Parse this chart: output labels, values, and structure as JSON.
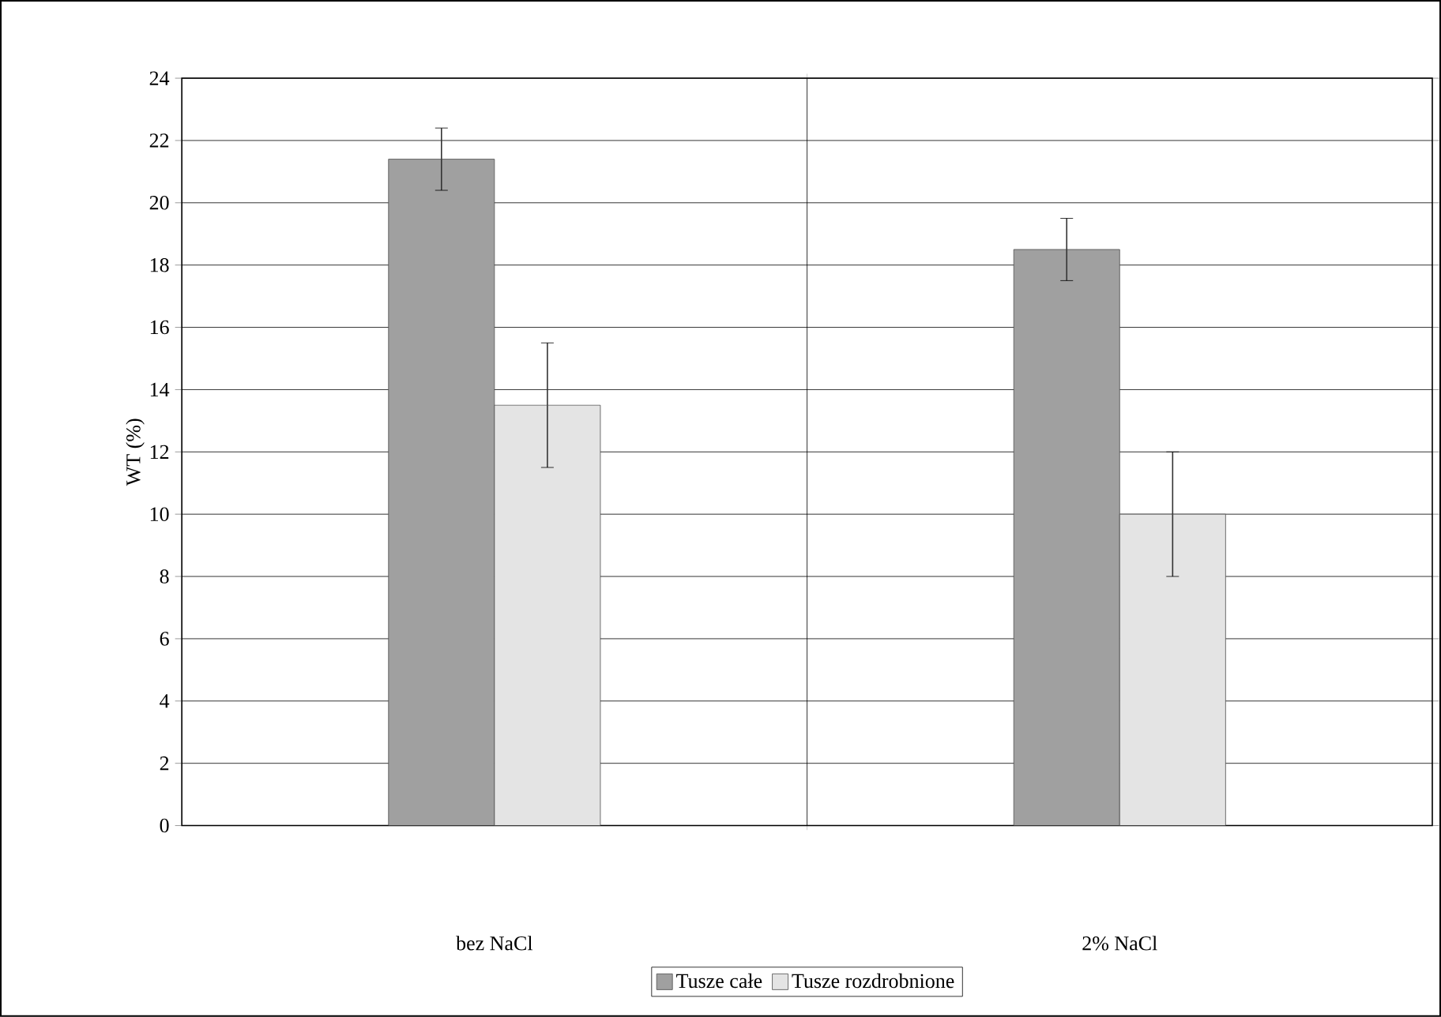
{
  "chart_data": {
    "type": "bar",
    "ylabel": "WT (%)",
    "categories": [
      "bez NaCl",
      "2% NaCl"
    ],
    "series": [
      {
        "name": "Tusze całe",
        "color": "#a0a0a0",
        "values": [
          21.4,
          18.5
        ],
        "errors": [
          1,
          1
        ]
      },
      {
        "name": "Tusze rozdrobnione",
        "color": "#e4e4e4",
        "values": [
          13.5,
          10
        ],
        "errors": [
          2,
          2
        ]
      }
    ],
    "ylim": [
      0,
      24
    ],
    "yticks": [
      0,
      2,
      4,
      6,
      8,
      10,
      12,
      14,
      16,
      18,
      20,
      22,
      24
    ],
    "grid": true,
    "legend": "bottom"
  }
}
